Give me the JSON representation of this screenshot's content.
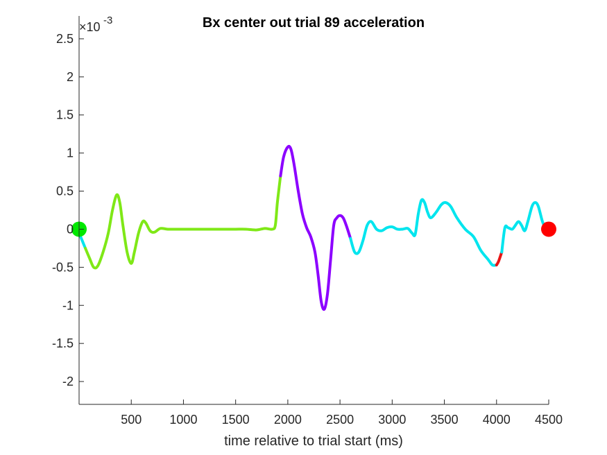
{
  "chart_data": {
    "type": "line",
    "title": "Bx  center out trial 89 acceleration",
    "xlabel": "time relative to trial start (ms)",
    "ylabel": "",
    "exponent_label": "×10",
    "exponent_power": "-3",
    "xlim": [
      0,
      4500
    ],
    "ylim": [
      -2.3,
      2.8
    ],
    "x_ticks": [
      500,
      1000,
      1500,
      2000,
      2500,
      3000,
      3500,
      4000,
      4500
    ],
    "x_tick_labels": [
      "500",
      "1000",
      "1500",
      "2000",
      "2500",
      "3000",
      "3500",
      "4000",
      "4500"
    ],
    "y_ticks": [
      -2,
      -1.5,
      -1,
      -0.5,
      0,
      0.5,
      1,
      1.5,
      2,
      2.5
    ],
    "y_tick_labels": [
      "-2",
      "-1.5",
      "-1",
      "-0.5",
      "0",
      "0.5",
      "1",
      "1.5",
      "2",
      "2.5"
    ],
    "grid": false,
    "segments": [
      {
        "color": "#00e5ee",
        "points": [
          [
            0,
            -0.05
          ],
          [
            30,
            -0.15
          ],
          [
            60,
            -0.25
          ]
        ]
      },
      {
        "color": "#7fe817",
        "points": [
          [
            60,
            -0.25
          ],
          [
            100,
            -0.38
          ],
          [
            140,
            -0.5
          ],
          [
            180,
            -0.48
          ],
          [
            230,
            -0.3
          ],
          [
            280,
            -0.05
          ],
          [
            320,
            0.25
          ],
          [
            360,
            0.45
          ],
          [
            390,
            0.35
          ],
          [
            420,
            0.05
          ],
          [
            460,
            -0.3
          ],
          [
            500,
            -0.45
          ],
          [
            530,
            -0.3
          ],
          [
            570,
            -0.05
          ],
          [
            610,
            0.1
          ],
          [
            640,
            0.08
          ],
          [
            680,
            -0.02
          ],
          [
            720,
            -0.04
          ],
          [
            780,
            0.01
          ],
          [
            850,
            0.0
          ],
          [
            950,
            0.0
          ],
          [
            1100,
            0.0
          ],
          [
            1300,
            0.0
          ],
          [
            1400,
            0.0
          ],
          [
            1500,
            0.0
          ],
          [
            1600,
            0.0
          ],
          [
            1700,
            -0.01
          ],
          [
            1780,
            0.01
          ],
          [
            1850,
            0.0
          ],
          [
            1880,
            0.05
          ],
          [
            1900,
            0.35
          ],
          [
            1930,
            0.7
          ]
        ]
      },
      {
        "color": "#8c00ff",
        "points": [
          [
            1930,
            0.7
          ],
          [
            1960,
            0.95
          ],
          [
            2000,
            1.08
          ],
          [
            2030,
            1.05
          ],
          [
            2060,
            0.85
          ],
          [
            2100,
            0.5
          ],
          [
            2140,
            0.2
          ],
          [
            2180,
            0.02
          ],
          [
            2220,
            -0.1
          ],
          [
            2260,
            -0.3
          ],
          [
            2290,
            -0.6
          ],
          [
            2320,
            -0.95
          ],
          [
            2350,
            -1.05
          ],
          [
            2380,
            -0.85
          ],
          [
            2410,
            -0.4
          ],
          [
            2440,
            0.05
          ],
          [
            2470,
            0.15
          ],
          [
            2500,
            0.18
          ],
          [
            2530,
            0.15
          ],
          [
            2560,
            0.05
          ],
          [
            2600,
            -0.12
          ]
        ]
      },
      {
        "color": "#00e5ee",
        "points": [
          [
            2600,
            -0.12
          ],
          [
            2640,
            -0.3
          ],
          [
            2680,
            -0.3
          ],
          [
            2720,
            -0.15
          ],
          [
            2760,
            0.05
          ],
          [
            2800,
            0.1
          ],
          [
            2850,
            0.0
          ],
          [
            2900,
            -0.02
          ],
          [
            2950,
            0.02
          ],
          [
            3000,
            0.03
          ],
          [
            3050,
            0.0
          ],
          [
            3100,
            0.0
          ],
          [
            3150,
            0.01
          ],
          [
            3190,
            -0.05
          ],
          [
            3220,
            -0.07
          ],
          [
            3250,
            0.2
          ],
          [
            3280,
            0.38
          ],
          [
            3310,
            0.35
          ],
          [
            3340,
            0.22
          ],
          [
            3370,
            0.15
          ],
          [
            3420,
            0.22
          ],
          [
            3470,
            0.32
          ],
          [
            3510,
            0.35
          ],
          [
            3560,
            0.3
          ],
          [
            3620,
            0.15
          ],
          [
            3700,
            0.0
          ],
          [
            3780,
            -0.1
          ],
          [
            3850,
            -0.28
          ],
          [
            3920,
            -0.4
          ],
          [
            3960,
            -0.47
          ],
          [
            4000,
            -0.47
          ]
        ]
      },
      {
        "color": "#e81414",
        "points": [
          [
            4000,
            -0.47
          ],
          [
            4020,
            -0.42
          ],
          [
            4050,
            -0.3
          ]
        ]
      },
      {
        "color": "#00e5ee",
        "points": [
          [
            4050,
            -0.3
          ],
          [
            4080,
            0.02
          ],
          [
            4110,
            0.02
          ],
          [
            4150,
            0.0
          ],
          [
            4180,
            0.05
          ],
          [
            4210,
            0.1
          ],
          [
            4240,
            0.05
          ],
          [
            4270,
            -0.02
          ],
          [
            4300,
            0.1
          ],
          [
            4340,
            0.3
          ],
          [
            4370,
            0.35
          ],
          [
            4400,
            0.3
          ],
          [
            4440,
            0.1
          ],
          [
            4470,
            0.02
          ],
          [
            4500,
            0.0
          ]
        ]
      }
    ],
    "markers": [
      {
        "x": 0,
        "y": 0,
        "color": "#00e800"
      },
      {
        "x": 4500,
        "y": 0,
        "color": "#ff0000"
      }
    ]
  }
}
